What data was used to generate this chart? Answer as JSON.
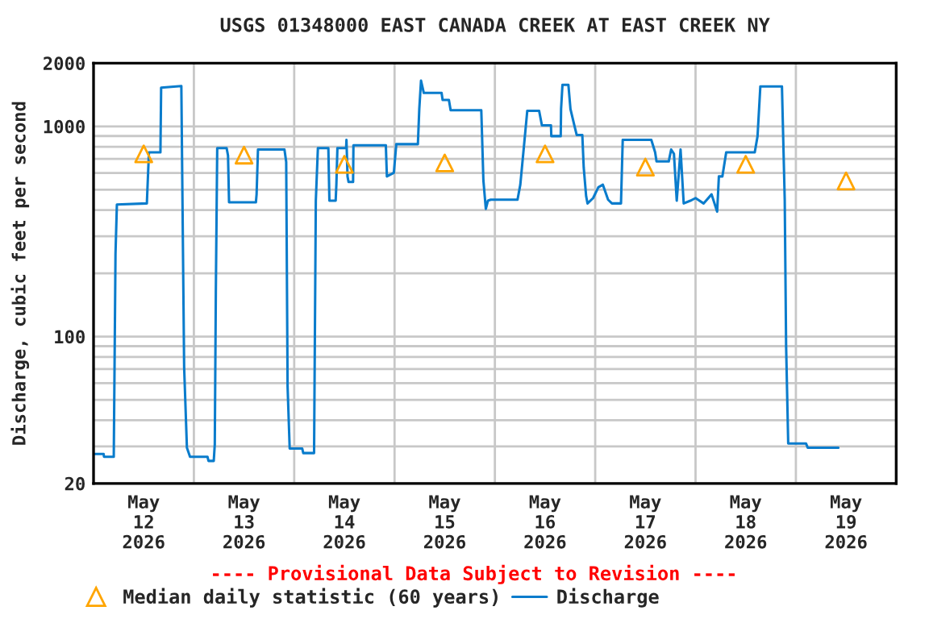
{
  "chart_data": {
    "type": "line",
    "title": "USGS 01348000 EAST CANADA CREEK AT EAST CREEK NY",
    "ylabel": "Discharge, cubic feet per second",
    "annotations": [
      "---- Provisional Data Subject to Revision ----"
    ],
    "log": "y",
    "grid": true,
    "legend": "bottom",
    "xlim": [
      "2026-05-12T00:00",
      "2026-05-20T00:00"
    ],
    "xticks": [
      {
        "value": "2026-05-12T12:00",
        "label": "May\n12\n2026"
      },
      {
        "value": "2026-05-13T12:00",
        "label": "May\n13\n2026"
      },
      {
        "value": "2026-05-14T12:00",
        "label": "May\n14\n2026"
      },
      {
        "value": "2026-05-15T12:00",
        "label": "May\n15\n2026"
      },
      {
        "value": "2026-05-16T12:00",
        "label": "May\n16\n2026"
      },
      {
        "value": "2026-05-17T12:00",
        "label": "May\n17\n2026"
      },
      {
        "value": "2026-05-18T12:00",
        "label": "May\n18\n2026"
      },
      {
        "value": "2026-05-19T12:00",
        "label": "May\n19\n2026"
      },
      {
        "value": "2026-05-13T00:00",
        "label": null
      },
      {
        "value": "2026-05-14T00:00",
        "label": null
      },
      {
        "value": "2026-05-15T00:00",
        "label": null
      },
      {
        "value": "2026-05-16T00:00",
        "label": null
      },
      {
        "value": "2026-05-17T00:00",
        "label": null
      },
      {
        "value": "2026-05-18T00:00",
        "label": null
      },
      {
        "value": "2026-05-19T00:00",
        "label": null
      }
    ],
    "ylim": [
      20,
      2000
    ],
    "yticks": [
      20,
      100,
      1000,
      2000,
      {
        "value": 30,
        "label": null
      },
      {
        "value": 40,
        "label": null
      },
      {
        "value": 50,
        "label": null
      },
      {
        "value": 60,
        "label": null
      },
      {
        "value": 70,
        "label": null
      },
      {
        "value": 80,
        "label": null
      },
      {
        "value": 90,
        "label": null
      },
      {
        "value": 200,
        "label": null
      },
      {
        "value": 300,
        "label": null
      },
      {
        "value": 400,
        "label": null
      },
      {
        "value": 500,
        "label": null
      },
      {
        "value": 600,
        "label": null
      },
      {
        "value": 700,
        "label": null
      },
      {
        "value": 800,
        "label": null
      },
      {
        "value": 900,
        "label": null
      }
    ],
    "series": [
      {
        "name": "Median daily statistic (60 years)",
        "type": "scatter",
        "marker": "triangle",
        "color": "#ffa500",
        "x": [
          "2026-05-12T12:00",
          "2026-05-13T12:00",
          "2026-05-14T12:00",
          "2026-05-15T12:00",
          "2026-05-16T12:00",
          "2026-05-17T12:00",
          "2026-05-18T12:00",
          "2026-05-19T12:00"
        ],
        "values": [
          740,
          730,
          660,
          670,
          740,
          640,
          660,
          550
        ]
      },
      {
        "name": "Discharge",
        "marker": "none",
        "line_style": "solid",
        "color": "#0a7ccc",
        "x": [
          "2026-05-12T00:00",
          "2026-05-12T02:25",
          "2026-05-12T02:30",
          "2026-05-12T04:50",
          "2026-05-12T05:00",
          "2026-05-12T05:15",
          "2026-05-12T05:35",
          "2026-05-12T12:45",
          "2026-05-12T13:15",
          "2026-05-12T16:00",
          "2026-05-12T16:10",
          "2026-05-12T21:00",
          "2026-05-12T21:10",
          "2026-05-12T21:40",
          "2026-05-12T22:20",
          "2026-05-12T23:05",
          "2026-05-13T03:15",
          "2026-05-13T03:30",
          "2026-05-13T04:45",
          "2026-05-13T05:00",
          "2026-05-13T05:15",
          "2026-05-13T05:35",
          "2026-05-13T07:50",
          "2026-05-13T08:10",
          "2026-05-13T08:25",
          "2026-05-13T14:50",
          "2026-05-13T15:00",
          "2026-05-13T15:20",
          "2026-05-13T21:40",
          "2026-05-13T22:05",
          "2026-05-13T22:25",
          "2026-05-13T22:55",
          "2026-05-14T01:55",
          "2026-05-14T02:10",
          "2026-05-14T04:45",
          "2026-05-14T05:10",
          "2026-05-14T05:40",
          "2026-05-14T08:10",
          "2026-05-14T08:25",
          "2026-05-14T09:55",
          "2026-05-14T10:05",
          "2026-05-14T10:20",
          "2026-05-14T12:25",
          "2026-05-14T12:30",
          "2026-05-14T12:45",
          "2026-05-14T13:00",
          "2026-05-14T14:05",
          "2026-05-14T14:10",
          "2026-05-14T21:55",
          "2026-05-14T22:10",
          "2026-05-14T23:50",
          "2026-05-15T00:25",
          "2026-05-15T05:35",
          "2026-05-15T05:55",
          "2026-05-15T06:20",
          "2026-05-15T07:00",
          "2026-05-15T11:15",
          "2026-05-15T11:30",
          "2026-05-15T13:00",
          "2026-05-15T13:25",
          "2026-05-15T20:45",
          "2026-05-15T21:15",
          "2026-05-15T21:50",
          "2026-05-15T22:20",
          "2026-05-15T23:00",
          "2026-05-16T05:25",
          "2026-05-16T06:05",
          "2026-05-16T07:00",
          "2026-05-16T07:45",
          "2026-05-16T10:35",
          "2026-05-16T11:15",
          "2026-05-16T13:25",
          "2026-05-16T13:30",
          "2026-05-16T15:45",
          "2026-05-16T15:50",
          "2026-05-16T16:10",
          "2026-05-16T17:35",
          "2026-05-16T18:05",
          "2026-05-16T19:00",
          "2026-05-16T19:35",
          "2026-05-16T20:55",
          "2026-05-16T21:15",
          "2026-05-16T21:50",
          "2026-05-16T22:10",
          "2026-05-16T23:30",
          "2026-05-17T00:45",
          "2026-05-17T01:50",
          "2026-05-17T03:05",
          "2026-05-17T04:00",
          "2026-05-17T06:10",
          "2026-05-17T06:35",
          "2026-05-17T13:25",
          "2026-05-17T14:20",
          "2026-05-17T14:40",
          "2026-05-17T17:35",
          "2026-05-17T18:10",
          "2026-05-17T18:50",
          "2026-05-17T19:30",
          "2026-05-17T20:25",
          "2026-05-17T21:10",
          "2026-05-17T22:45",
          "2026-05-18T00:00",
          "2026-05-18T01:55",
          "2026-05-18T03:50",
          "2026-05-18T05:10",
          "2026-05-18T05:35",
          "2026-05-18T06:25",
          "2026-05-18T07:20",
          "2026-05-18T14:10",
          "2026-05-18T14:50",
          "2026-05-18T15:30",
          "2026-05-18T20:40",
          "2026-05-18T21:20",
          "2026-05-18T21:40",
          "2026-05-18T22:10",
          "2026-05-19T02:25",
          "2026-05-19T02:50",
          "2026-05-19T10:10"
        ],
        "values": [
          27.6,
          27.6,
          26.8,
          26.8,
          63.8,
          248,
          425,
          430,
          753,
          753,
          1530,
          1557,
          718,
          71.8,
          29.6,
          26.8,
          26.8,
          25.6,
          25.6,
          30.7,
          162,
          789,
          789,
          727,
          435,
          435,
          475,
          776,
          776,
          677,
          57.8,
          29.3,
          29.3,
          27.9,
          27.9,
          443,
          789,
          789,
          443,
          443,
          528,
          789,
          789,
          863,
          578,
          544,
          544,
          813,
          813,
          578,
          602,
          823,
          823,
          1208,
          1651,
          1443,
          1443,
          1336,
          1336,
          1194,
          1194,
          554,
          405,
          443,
          448,
          448,
          528,
          823,
          1187,
          1187,
          1012,
          1012,
          899,
          899,
          1208,
          1577,
          1577,
          1208,
          1012,
          910,
          910,
          638,
          465,
          430,
          456,
          513,
          528,
          448,
          430,
          430,
          863,
          863,
          753,
          681,
          681,
          776,
          740,
          443,
          776,
          430,
          443,
          456,
          430,
          475,
          393,
          578,
          578,
          753,
          753,
          899,
          1549,
          1549,
          448,
          89.9,
          31.0,
          31.0,
          29.6,
          29.6
        ]
      }
    ]
  }
}
